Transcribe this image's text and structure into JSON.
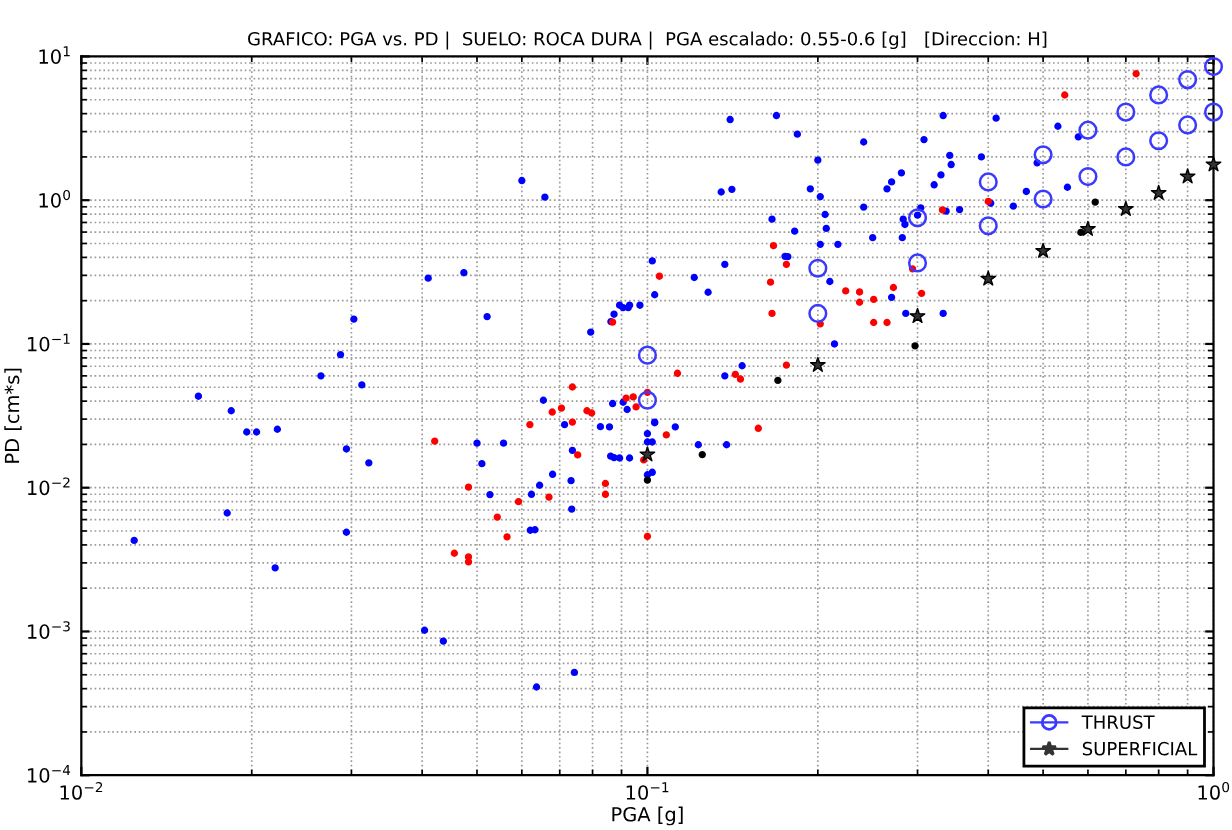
{
  "chart_data": {
    "type": "scatter",
    "title": "GRAFICO: PGA vs. PD |  SUELO: ROCA DURA |  PGA escalado: 0.55-0.6 [g]   [Direccion: H]",
    "xlabel": "PGA [g]",
    "ylabel": "PD [cm*s]",
    "log": "xy",
    "grid": true,
    "legend": "bottom right",
    "xlim": [
      0.01,
      1
    ],
    "ylim": [
      0.0001,
      10
    ],
    "xticks": [
      {
        "value": 0.01,
        "label": "10$^{−2}$"
      },
      {
        "value": 0.1,
        "label": "10$^{−1}$"
      },
      {
        "value": 1,
        "label": "10$^{0}$"
      }
    ],
    "yticks": [
      {
        "value": 0.0001,
        "label": "10$^{−4}$"
      },
      {
        "value": 0.001,
        "label": "10$^{−3}$"
      },
      {
        "value": 0.01,
        "label": "10$^{−2}$"
      },
      {
        "value": 0.1,
        "label": "10$^{−1}$"
      },
      {
        "value": 1,
        "label": "10$^{0}$"
      },
      {
        "value": 10,
        "label": "10$^{1}$"
      }
    ],
    "series": [
      {
        "color": "#0000ff",
        "marker": "circle",
        "x": [
          0.0124,
          0.0161,
          0.0184,
          0.0181,
          0.0196,
          0.0204,
          0.0222,
          0.022,
          0.0265,
          0.0287,
          0.0303,
          0.0313,
          0.0294,
          0.0322,
          0.0294,
          0.041,
          0.0474,
          0.0521,
          0.06,
          0.0659,
          0.0404,
          0.0436,
          0.05,
          0.051,
          0.0527,
          0.0557,
          0.0621,
          0.0633,
          0.0624,
          0.0645,
          0.0655,
          0.068,
          0.0714,
          0.0733,
          0.0735,
          0.0737,
          0.0794,
          0.0826,
          0.0861,
          0.0873,
          0.0862,
          0.0873,
          0.0906,
          0.0925,
          0.0868,
          0.0921,
          0.14,
          0.169,
          0.184,
          0.241,
          0.333,
          0.308,
          0.413,
          0.531,
          0.577,
          0.488,
          0.389,
          0.342,
          0.344,
          0.33,
          0.321,
          0.281,
          0.27,
          0.265,
          0.2,
          0.194,
          0.202,
          0.141,
          0.135,
          0.166,
          0.182,
          0.206,
          0.207,
          0.202,
          0.217,
          0.241,
          0.25,
          0.282,
          0.285,
          0.283,
          0.304,
          0.3,
          0.337,
          0.356,
          0.404,
          0.443,
          0.467,
          0.552,
          0.175,
          0.177,
          0.137,
          0.102,
          0.121,
          0.128,
          0.103,
          0.21,
          0.27,
          0.286,
          0.333,
          0.214,
          0.0893,
          0.093,
          0.097,
          0.137,
          0.147,
          0.0906,
          0.103,
          0.112,
          0.0857,
          0.0893,
          0.093,
          0.1,
          0.1,
          0.102,
          0.103,
          0.1,
          0.102,
          0.123,
          0.138,
          0.0743,
          0.0637
        ],
        "values": [
          0.0043,
          0.0433,
          0.0343,
          0.00667,
          0.0244,
          0.0244,
          0.0255,
          0.00277,
          0.06,
          0.0843,
          0.149,
          0.0519,
          0.0186,
          0.0149,
          0.0049,
          0.287,
          0.313,
          0.155,
          1.37,
          1.05,
          0.00102,
          0.000857,
          0.0204,
          0.0147,
          0.00896,
          0.0204,
          0.00506,
          0.0051,
          0.009,
          0.0104,
          0.0406,
          0.0124,
          0.0275,
          0.0112,
          0.0071,
          0.0182,
          0.121,
          0.0266,
          0.0166,
          0.0162,
          0.143,
          0.161,
          0.179,
          0.179,
          0.0385,
          0.035,
          3.64,
          3.88,
          2.88,
          2.54,
          3.88,
          2.64,
          3.72,
          3.27,
          2.76,
          1.82,
          2.0,
          2.05,
          1.77,
          1.5,
          1.28,
          1.55,
          1.34,
          1.2,
          1.9,
          1.2,
          1.06,
          1.19,
          1.14,
          0.738,
          0.61,
          0.795,
          0.636,
          0.493,
          0.493,
          0.895,
          0.549,
          0.549,
          0.678,
          0.738,
          0.885,
          0.787,
          0.839,
          0.86,
          0.953,
          0.91,
          1.15,
          1.23,
          0.407,
          0.405,
          0.358,
          0.378,
          0.29,
          0.229,
          0.22,
          0.272,
          0.211,
          0.163,
          0.163,
          0.1,
          0.186,
          0.186,
          0.186,
          0.06,
          0.0705,
          0.0393,
          0.0286,
          0.0265,
          0.0265,
          0.0161,
          0.0161,
          0.0238,
          0.0208,
          0.0208,
          0.0283,
          0.0123,
          0.0128,
          0.0199,
          0.0199,
          0.000519,
          0.000411
        ]
      },
      {
        "color": "#ff0000",
        "marker": "circle",
        "x": [
          0.0421,
          0.0483,
          0.0456,
          0.0483,
          0.0483,
          0.0543,
          0.0565,
          0.062,
          0.0592,
          0.067,
          0.0679,
          0.0705,
          0.0737,
          0.0737,
          0.0753,
          0.0782,
          0.0797,
          0.0843,
          0.0843,
          0.0868,
          0.0917,
          0.73,
          0.546,
          0.332,
          0.4,
          0.167,
          0.176,
          0.105,
          0.165,
          0.224,
          0.237,
          0.237,
          0.251,
          0.272,
          0.294,
          0.305,
          0.251,
          0.265,
          0.202,
          0.166,
          0.176,
          0.143,
          0.146,
          0.113,
          0.0944,
          0.0955,
          0.1,
          0.157,
          0.1,
          0.0985,
          0.108
        ],
        "values": [
          0.0211,
          0.0101,
          0.0035,
          0.00305,
          0.0033,
          0.00625,
          0.00455,
          0.0275,
          0.008,
          0.0086,
          0.0336,
          0.0358,
          0.0502,
          0.0286,
          0.0169,
          0.0343,
          0.0331,
          0.0107,
          0.009,
          0.142,
          0.042,
          7.58,
          5.39,
          0.857,
          0.98,
          0.483,
          0.358,
          0.296,
          0.269,
          0.234,
          0.23,
          0.195,
          0.204,
          0.247,
          0.333,
          0.225,
          0.141,
          0.141,
          0.138,
          0.163,
          0.0713,
          0.0614,
          0.057,
          0.0625,
          0.0428,
          0.0365,
          0.046,
          0.0259,
          0.00459,
          0.0156,
          0.0233
        ]
      },
      {
        "color": "#000000",
        "marker": "circle",
        "x": [
          0.618,
          0.583,
          0.297,
          0.17,
          0.125,
          0.1
        ],
        "values": [
          0.97,
          0.597,
          0.097,
          0.0558,
          0.017,
          0.0113
        ]
      },
      {
        "name": "THRUST",
        "color": "#3a3aff",
        "marker": "circle",
        "x": [
          0.1,
          0.1,
          0.2,
          0.2,
          0.3,
          0.3,
          0.4,
          0.4,
          0.5,
          0.5,
          0.6,
          0.6,
          0.7,
          0.7,
          0.8,
          0.8,
          0.9,
          0.9,
          1.0,
          1.0
        ],
        "values": [
          0.0836,
          0.0406,
          0.336,
          0.163,
          0.755,
          0.366,
          1.34,
          0.664,
          2.07,
          1.02,
          3.07,
          1.46,
          4.1,
          2.0,
          5.4,
          2.59,
          6.9,
          3.34,
          8.5,
          4.1
        ]
      },
      {
        "name": "SUPERFICIAL",
        "color": "#333333",
        "marker": "star",
        "x": [
          0.1,
          0.2,
          0.3,
          0.4,
          0.5,
          0.6,
          0.7,
          0.8,
          0.9,
          1.0
        ],
        "values": [
          0.017,
          0.0713,
          0.156,
          0.284,
          0.443,
          0.63,
          0.867,
          1.12,
          1.46,
          1.77
        ]
      }
    ]
  }
}
